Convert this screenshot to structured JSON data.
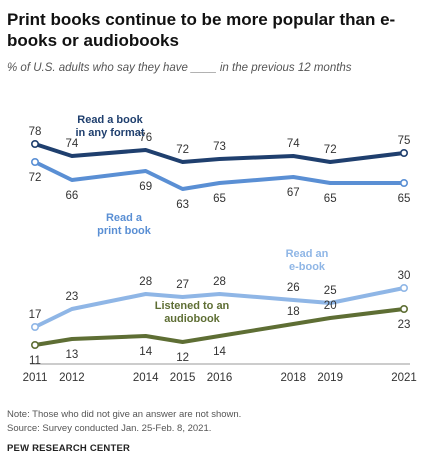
{
  "header": {
    "title": "Print books continue to be more popular than e-books or audiobooks",
    "subtitle": "% of U.S. adults who say they have ____ in the previous 12 months"
  },
  "footer": {
    "note": "Note: Those who did not give an answer are not shown.",
    "source": "Source: Survey conducted Jan. 25-Feb. 8, 2021.",
    "brand": "PEW RESEARCH CENTER"
  },
  "chart_data": {
    "type": "line",
    "x": [
      2011,
      2012,
      2014,
      2015,
      2016,
      2018,
      2019,
      2021
    ],
    "x_tick_labels": [
      "2011",
      "2012",
      "2014",
      "2015",
      "2016",
      "2018",
      "2019",
      "2021"
    ],
    "ylim": [
      0,
      100
    ],
    "grid": false,
    "legend": "inline labels",
    "series": [
      {
        "name": "Read a book in any format",
        "label_lines": [
          "Read a book",
          "in any format"
        ],
        "color": "#1f3f6e",
        "values": [
          78,
          74,
          76,
          72,
          73,
          74,
          72,
          75
        ]
      },
      {
        "name": "Read a print book",
        "label_lines": [
          "Read a",
          "print book"
        ],
        "color": "#5a8fd4",
        "values": [
          72,
          66,
          69,
          63,
          65,
          67,
          65,
          65
        ]
      },
      {
        "name": "Read an e-book",
        "label_lines": [
          "Read an",
          "e-book"
        ],
        "color": "#8fb6e6",
        "values": [
          17,
          23,
          28,
          27,
          28,
          26,
          25,
          30
        ]
      },
      {
        "name": "Listened to an audiobook",
        "label_lines": [
          "Listened to an",
          "audiobook"
        ],
        "color": "#5e6e34",
        "values": [
          11,
          13,
          14,
          12,
          14,
          18,
          20,
          23
        ]
      }
    ]
  }
}
